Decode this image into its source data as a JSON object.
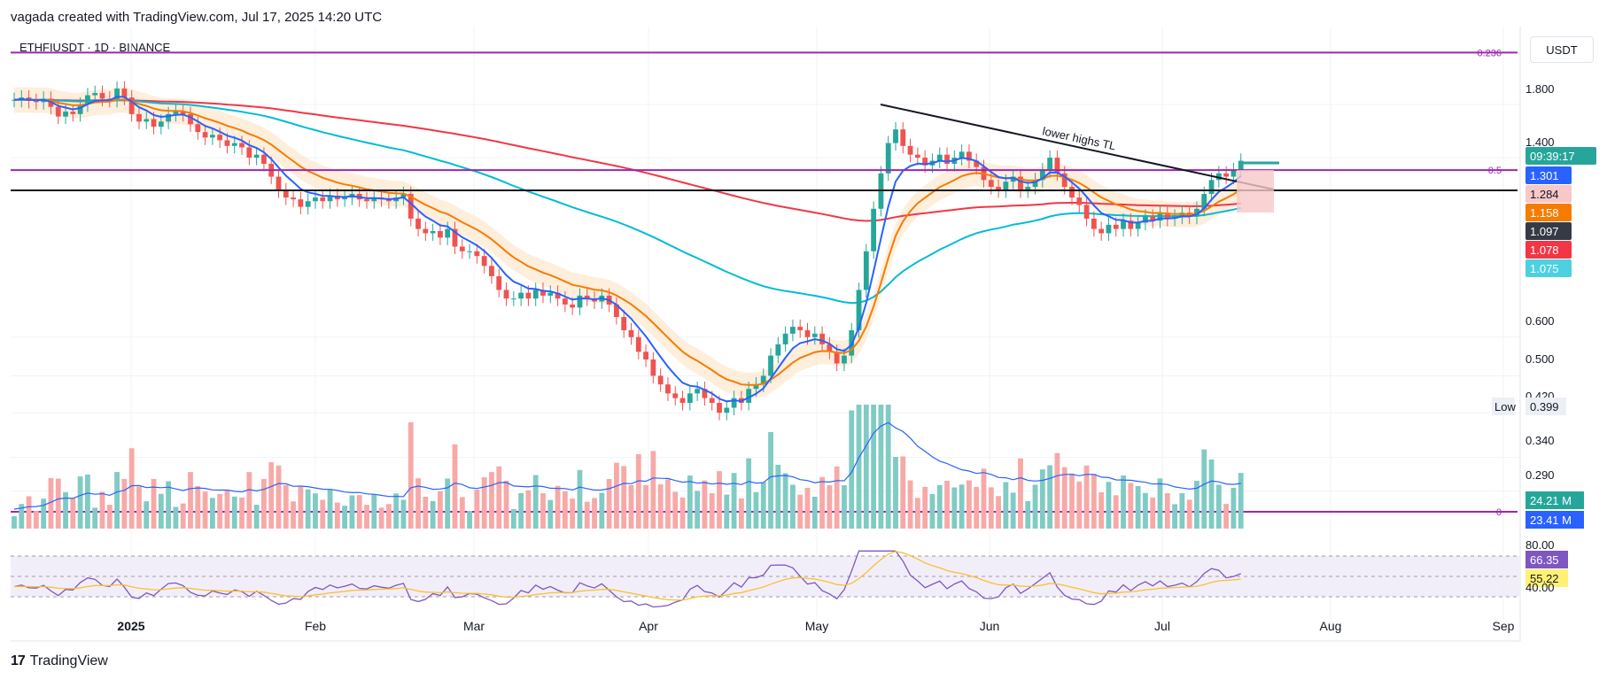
{
  "header": {
    "attribution": "vagada created with TradingView.com, Jul 17, 2025 14:20 UTC",
    "symbol": "ETHFIUSDT · 1D · BINANCE"
  },
  "footer": {
    "brand_logo": "17",
    "brand_name": "TradingView"
  },
  "currency_button": "USDT",
  "annotation_text": "lower highs TL",
  "colors": {
    "up": "#26a69a",
    "down": "#ef5350",
    "ema_fast": "#2962ff",
    "ema_mid": "#f57c00",
    "ema_slow": "#00bcd4",
    "ma_long": "#f23645",
    "fib": "#9c27b0",
    "support": "#131722",
    "rsi": "#7e57c2",
    "rsi_ma": "#fbc02d"
  },
  "chart_data": {
    "type": "candlestick",
    "title": "ETHFIUSDT · 1D · BINANCE",
    "scale": "log",
    "price_ticks": [
      "1.800",
      "1.400",
      "0.600",
      "0.500",
      "0.420",
      "0.340",
      "0.290"
    ],
    "x_ticks": [
      "2025",
      "Feb",
      "Mar",
      "Apr",
      "May",
      "Jun",
      "Jul",
      "Aug",
      "Sep"
    ],
    "horizontal_levels": [
      {
        "label": "0.236",
        "value": 2.3,
        "color": "#9c27b0"
      },
      {
        "label": "0.5",
        "value": 1.32,
        "color": "#9c27b0"
      },
      {
        "label": "",
        "value": 1.2,
        "color": "#131722"
      },
      {
        "label": "0",
        "value": 0.25,
        "color": "#9c27b0"
      }
    ],
    "price_labels": [
      {
        "text": "09:39:17",
        "color": "#26a69a"
      },
      {
        "text": "1.301",
        "color": "#2962ff"
      },
      {
        "text": "1.284",
        "color": "#f8c8c8"
      },
      {
        "text": "1.158",
        "color": "#f57c00"
      },
      {
        "text": "1.097",
        "color": "#363a45"
      },
      {
        "text": "1.078",
        "color": "#f23645"
      },
      {
        "text": "1.075",
        "color": "#4dd0e1"
      }
    ],
    "low_marker": {
      "label": "Low",
      "value": "0.399"
    },
    "volume_labels": [
      {
        "text": "24.21 M",
        "color": "#26a69a"
      },
      {
        "text": "23.41 M",
        "color": "#2962ff"
      }
    ],
    "rsi": {
      "ticks": [
        "80.00",
        "40.00"
      ],
      "value_label": "66.35",
      "ma_label": "55.22"
    },
    "close_series": [
      1.84,
      1.86,
      1.83,
      1.82,
      1.85,
      1.78,
      1.7,
      1.74,
      1.72,
      1.8,
      1.88,
      1.9,
      1.85,
      1.84,
      1.94,
      1.86,
      1.72,
      1.66,
      1.68,
      1.62,
      1.66,
      1.72,
      1.74,
      1.72,
      1.64,
      1.58,
      1.54,
      1.56,
      1.52,
      1.48,
      1.5,
      1.47,
      1.4,
      1.42,
      1.36,
      1.28,
      1.2,
      1.16,
      1.15,
      1.11,
      1.14,
      1.16,
      1.14,
      1.17,
      1.15,
      1.16,
      1.18,
      1.15,
      1.14,
      1.16,
      1.15,
      1.14,
      1.16,
      1.18,
      1.05,
      1.0,
      0.98,
      0.99,
      0.96,
      1.0,
      0.92,
      0.9,
      0.9,
      0.88,
      0.84,
      0.8,
      0.75,
      0.72,
      0.72,
      0.74,
      0.72,
      0.75,
      0.73,
      0.74,
      0.72,
      0.7,
      0.69,
      0.73,
      0.72,
      0.71,
      0.73,
      0.7,
      0.66,
      0.62,
      0.6,
      0.56,
      0.54,
      0.5,
      0.48,
      0.46,
      0.45,
      0.44,
      0.46,
      0.47,
      0.45,
      0.44,
      0.42,
      0.43,
      0.45,
      0.44,
      0.47,
      0.48,
      0.5,
      0.55,
      0.58,
      0.61,
      0.63,
      0.62,
      0.6,
      0.61,
      0.58,
      0.56,
      0.53,
      0.55,
      0.62,
      0.75,
      0.9,
      1.1,
      1.3,
      1.5,
      1.6,
      1.48,
      1.42,
      1.4,
      1.35,
      1.38,
      1.42,
      1.36,
      1.4,
      1.44,
      1.38,
      1.34,
      1.26,
      1.22,
      1.2,
      1.25,
      1.28,
      1.2,
      1.22,
      1.26,
      1.32,
      1.4,
      1.3,
      1.22,
      1.16,
      1.12,
      1.05,
      1.0,
      0.98,
      1.02,
      1.0,
      1.04,
      1.0,
      1.03,
      1.06,
      1.04,
      1.08,
      1.05,
      1.06,
      1.08,
      1.06,
      1.1,
      1.18,
      1.26,
      1.3,
      1.28,
      1.32,
      1.38
    ]
  }
}
